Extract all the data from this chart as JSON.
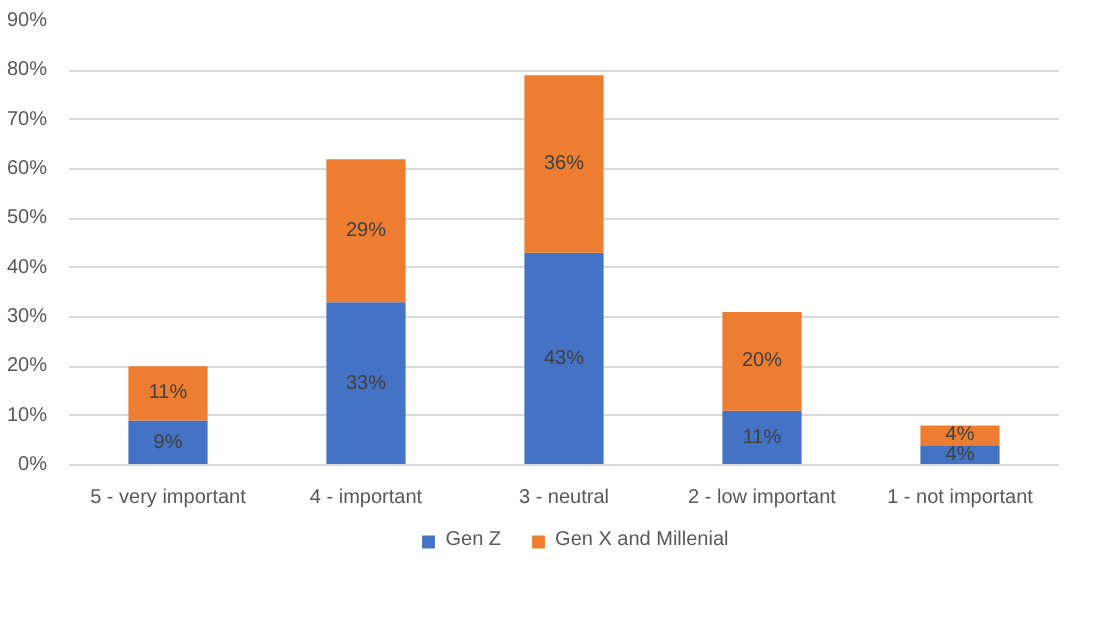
{
  "chart_data": {
    "type": "bar",
    "stacked": true,
    "categories": [
      "5 - very important",
      "4 - important",
      "3 - neutral",
      "2 - low important",
      "1 - not important"
    ],
    "series": [
      {
        "name": "Gen Z",
        "color": "#4472c4",
        "values": [
          9,
          33,
          43,
          11,
          4
        ],
        "value_labels": [
          "9%",
          "33%",
          "43%",
          "11%",
          "4%"
        ]
      },
      {
        "name": "Gen X and Millenial",
        "color": "#ed7d31",
        "values": [
          11,
          29,
          36,
          20,
          4
        ],
        "value_labels": [
          "11%",
          "29%",
          "36%",
          "20%",
          "4%"
        ]
      }
    ],
    "ylim": [
      0,
      90
    ],
    "yticks": [
      {
        "value": 0,
        "label": "0%"
      },
      {
        "value": 10,
        "label": "10%"
      },
      {
        "value": 20,
        "label": "20%"
      },
      {
        "value": 30,
        "label": "30%"
      },
      {
        "value": 40,
        "label": "40%"
      },
      {
        "value": 50,
        "label": "50%"
      },
      {
        "value": 60,
        "label": "60%"
      },
      {
        "value": 70,
        "label": "70%"
      },
      {
        "value": 80,
        "label": "80%"
      },
      {
        "value": 90,
        "label": "90%"
      }
    ],
    "grid": "y",
    "legend": "bottom"
  }
}
